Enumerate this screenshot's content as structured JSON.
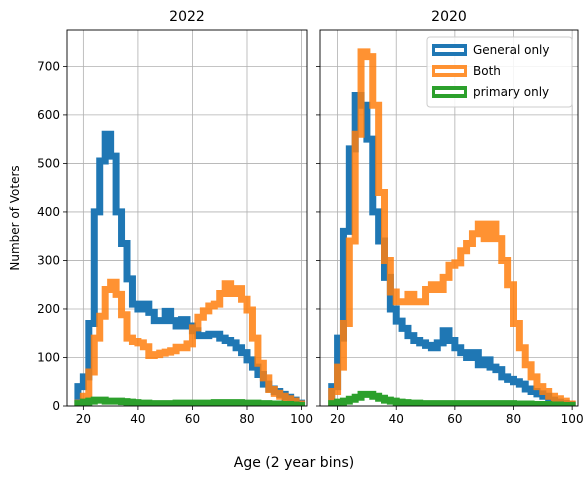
{
  "figure": {
    "xlabel": "Age (2 year bins)"
  },
  "chart_data": [
    {
      "type": "histogram",
      "title": "2022",
      "xlabel": "Age (2 year bins)",
      "ylabel": "Number of Voters",
      "xlim": [
        14,
        102
      ],
      "ylim": [
        0,
        775
      ],
      "xticks": [
        20,
        40,
        60,
        80,
        100
      ],
      "yticks": [
        0,
        100,
        200,
        300,
        400,
        500,
        600,
        700
      ],
      "grid": true,
      "bin_edges": [
        18,
        20,
        22,
        24,
        26,
        28,
        30,
        32,
        34,
        36,
        38,
        40,
        42,
        44,
        46,
        48,
        50,
        52,
        54,
        56,
        58,
        60,
        62,
        64,
        66,
        68,
        70,
        72,
        74,
        76,
        78,
        80,
        82,
        84,
        86,
        88,
        90,
        92,
        94,
        96,
        98,
        100
      ],
      "series": [
        {
          "name": "General only",
          "color": "#1f77b4",
          "values": [
            40,
            60,
            170,
            400,
            505,
            560,
            515,
            400,
            335,
            262,
            210,
            200,
            210,
            193,
            176,
            176,
            195,
            176,
            165,
            178,
            165,
            155,
            145,
            145,
            148,
            148,
            140,
            135,
            130,
            120,
            110,
            95,
            80,
            65,
            45,
            35,
            30,
            24,
            18,
            12,
            6
          ]
        },
        {
          "name": "Both",
          "color": "#ff7f0e",
          "values": [
            6,
            20,
            70,
            140,
            185,
            240,
            255,
            230,
            188,
            140,
            133,
            130,
            122,
            104,
            106,
            109,
            111,
            114,
            121,
            120,
            128,
            161,
            183,
            196,
            206,
            210,
            232,
            252,
            232,
            242,
            220,
            198,
            140,
            88,
            58,
            34,
            26,
            20,
            15,
            10,
            4
          ]
        },
        {
          "name": "primary only",
          "color": "#2ca02c",
          "values": [
            5,
            8,
            10,
            12,
            12,
            10,
            10,
            10,
            9,
            8,
            7,
            6,
            6,
            5,
            5,
            5,
            5,
            5,
            6,
            6,
            6,
            6,
            6,
            6,
            6,
            7,
            7,
            7,
            7,
            7,
            6,
            6,
            6,
            5,
            5,
            4,
            4,
            3,
            3,
            2,
            1
          ]
        }
      ]
    },
    {
      "type": "histogram",
      "title": "2020",
      "xlabel": "Age (2 year bins)",
      "ylabel": "",
      "xlim": [
        14,
        102
      ],
      "ylim": [
        0,
        775
      ],
      "xticks": [
        20,
        40,
        60,
        80,
        100
      ],
      "yticks": [
        0,
        100,
        200,
        300,
        400,
        500,
        600,
        700
      ],
      "grid": true,
      "legend": "top-right",
      "bin_edges": [
        18,
        20,
        22,
        24,
        26,
        28,
        30,
        32,
        34,
        36,
        38,
        40,
        42,
        44,
        46,
        48,
        50,
        52,
        54,
        56,
        58,
        60,
        62,
        64,
        66,
        68,
        70,
        72,
        74,
        76,
        78,
        80,
        82,
        84,
        86,
        88,
        90,
        92,
        94,
        96,
        98,
        100
      ],
      "series": [
        {
          "name": "General only",
          "color": "#1f77b4",
          "values": [
            40,
            140,
            360,
            530,
            640,
            620,
            550,
            400,
            340,
            265,
            200,
            175,
            160,
            145,
            135,
            130,
            125,
            120,
            130,
            155,
            135,
            120,
            110,
            100,
            110,
            85,
            95,
            80,
            75,
            60,
            55,
            50,
            45,
            35,
            30,
            25,
            20,
            12,
            8,
            5,
            3
          ]
        },
        {
          "name": "Both",
          "color": "#ff7f0e",
          "values": [
            30,
            80,
            170,
            340,
            560,
            730,
            720,
            620,
            440,
            300,
            235,
            215,
            215,
            230,
            215,
            215,
            240,
            250,
            240,
            265,
            290,
            295,
            320,
            335,
            355,
            375,
            345,
            375,
            345,
            300,
            250,
            170,
            120,
            85,
            60,
            40,
            30,
            20,
            15,
            10,
            4
          ]
        },
        {
          "name": "primary only",
          "color": "#2ca02c",
          "values": [
            5,
            8,
            10,
            14,
            18,
            24,
            24,
            20,
            16,
            12,
            10,
            8,
            7,
            6,
            6,
            5,
            5,
            5,
            5,
            5,
            5,
            5,
            5,
            5,
            5,
            5,
            5,
            5,
            5,
            5,
            5,
            4,
            4,
            4,
            3,
            3,
            3,
            2,
            2,
            1,
            1
          ]
        }
      ]
    }
  ]
}
